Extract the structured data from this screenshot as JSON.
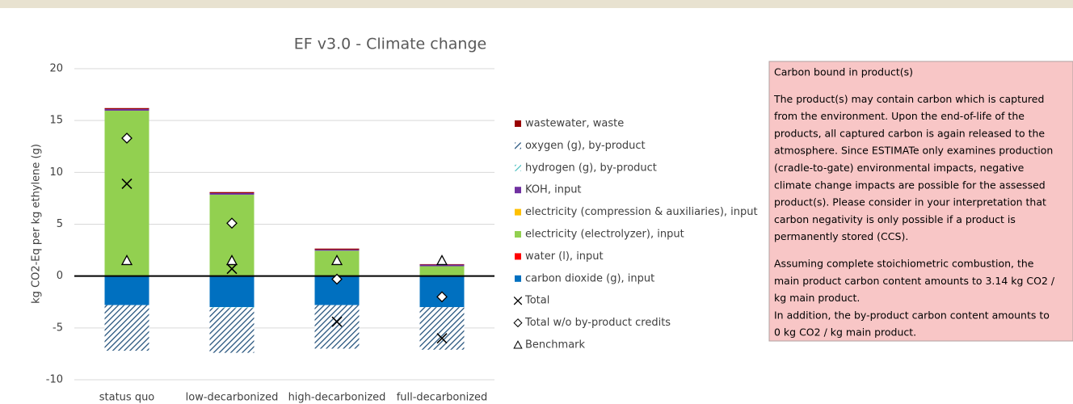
{
  "chart_data": {
    "type": "stacked_bar",
    "title": "EF v3.0 - Climate change",
    "y_label": "kg CO2-Eq per kg ethylene (g)",
    "categories": [
      "status quo",
      "low-decarbonized",
      "high-decarbonized",
      "full-decarbonized"
    ],
    "ylim": [
      -10,
      20
    ],
    "yticks": [
      -10,
      -5,
      0,
      5,
      10,
      15,
      20
    ],
    "grid": true,
    "legend": "right",
    "series": [
      {
        "name": "wastewater, waste",
        "color": "#990000",
        "values": [
          0.1,
          0.1,
          0.1,
          0.05
        ]
      },
      {
        "name": "oxygen (g), by-product",
        "color": "#1f4e79",
        "pattern": "hatch",
        "values": [
          -4.4,
          -4.3,
          -4.2,
          -4.1
        ]
      },
      {
        "name": "hydrogen (g), by-product",
        "color": "#4fc1c1",
        "pattern": "hatch",
        "values": [
          0,
          -0.1,
          0,
          0
        ]
      },
      {
        "name": "KOH, input",
        "color": "#7030a0",
        "values": [
          0.15,
          0.15,
          0.1,
          0.15
        ]
      },
      {
        "name": "electricity (compression & auxiliaries), input",
        "color": "#ffc000",
        "values": [
          0,
          0,
          0,
          0
        ]
      },
      {
        "name": "electricity (electrolyzer), input",
        "color": "#92d050",
        "values": [
          15.9,
          7.8,
          2.4,
          0.9
        ]
      },
      {
        "name": "water (l), input",
        "color": "#ff0000",
        "values": [
          0.05,
          0.05,
          0.05,
          0.05
        ]
      },
      {
        "name": "carbon dioxide (g), input",
        "color": "#0070c0",
        "values": [
          -2.8,
          -3.0,
          -2.8,
          -3.0
        ]
      }
    ],
    "markers": [
      {
        "name": "Total",
        "symbol": "x",
        "values": [
          8.9,
          0.7,
          -4.4,
          -6.0
        ]
      },
      {
        "name": "Total w/o by-product credits",
        "symbol": "diamond",
        "values": [
          13.3,
          5.1,
          -0.3,
          -2.0
        ]
      },
      {
        "name": "Benchmark",
        "symbol": "triangle",
        "values": [
          1.5,
          1.5,
          1.5,
          1.5
        ]
      }
    ]
  },
  "note_box": {
    "paragraphs": [
      [
        "Carbon bound in product(s)"
      ],
      [
        "The product(s) may contain carbon which is captured",
        "from the environment. Upon the end-of-life of the",
        "products, all captured carbon is again released to the",
        "atmosphere. Since ESTIMATe only examines production",
        "(cradle-to-gate) environmental impacts, negative",
        "climate change impacts are possible for the assessed",
        "product(s). Please consider in your interpretation that",
        "carbon negativity is only possible if a product is",
        "permanently stored (CCS)."
      ],
      [
        "Assuming complete stoichiometric combustion, the",
        "main product carbon content amounts to 3.14 kg CO2 /",
        "kg main product.",
        "In addition, the by-product carbon content amounts to",
        "0 kg CO2 / kg main product."
      ]
    ]
  }
}
